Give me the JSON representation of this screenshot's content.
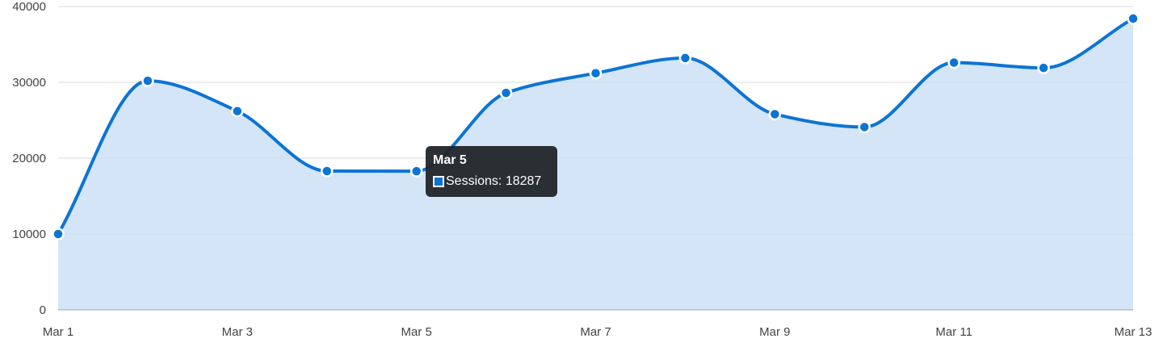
{
  "chart_data": {
    "type": "area",
    "title": "",
    "xlabel": "",
    "ylabel": "",
    "x": [
      "Mar 1",
      "Mar 2",
      "Mar 3",
      "Mar 4",
      "Mar 5",
      "Mar 6",
      "Mar 7",
      "Mar 8",
      "Mar 9",
      "Mar 10",
      "Mar 11",
      "Mar 12",
      "Mar 13"
    ],
    "x_tick_labels": [
      "Mar 1",
      "Mar 3",
      "Mar 5",
      "Mar 7",
      "Mar 9",
      "Mar 11",
      "Mar 13"
    ],
    "series": [
      {
        "name": "Sessions",
        "values": [
          10000,
          30200,
          26200,
          18300,
          18287,
          28600,
          31200,
          33200,
          25800,
          24100,
          32600,
          31900,
          38400
        ]
      }
    ],
    "ylim": [
      0,
      40000
    ],
    "y_ticks": [
      0,
      10000,
      20000,
      30000,
      40000
    ],
    "grid": true,
    "legend": "none",
    "colors": {
      "line": "#0c74d5",
      "fill": "#cce1f6",
      "grid": "#d8d8d8"
    },
    "tooltip": {
      "title": "Mar 5",
      "label": "Sessions: 18287"
    }
  }
}
